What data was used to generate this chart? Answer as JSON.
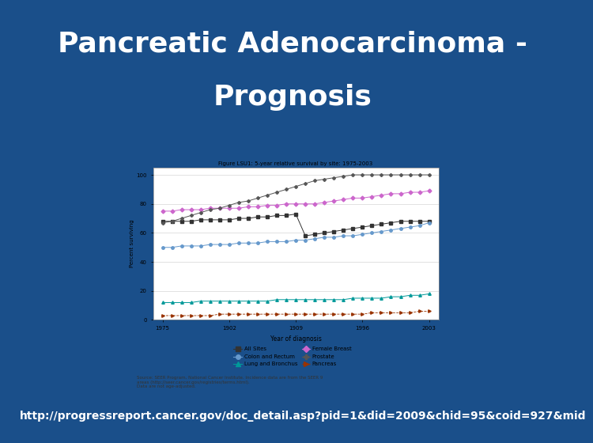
{
  "title_line1": "Pancreatic Adenocarcinoma -",
  "title_line2": "Prognosis",
  "title_fontsize": 26,
  "title_color": "#FFFFFF",
  "background_color": "#1a4f8a",
  "url_text": "http://progressreport.cancer.gov/doc_detail.asp?pid=1&did=2009&chid=95&coid=927&mid",
  "url_fontsize": 10,
  "url_color": "#FFFFFF",
  "chart_title": "Figure LSU1: 5-year relative survival by site: 1975-2003",
  "chart_xlabel": "Year of diagnosis",
  "chart_ylabel": "Percent surviving",
  "chart_bg": "#FFFFFF",
  "source_text": "Source: SEER Program, National Cancer Institute. Incidence data are from the SEER 9\nareas (http://seer.cancer.gov/registries/terms.html).\nData are not age-adjusted.",
  "years": [
    1975,
    1976,
    1977,
    1978,
    1979,
    1980,
    1981,
    1982,
    1983,
    1984,
    1985,
    1986,
    1987,
    1988,
    1989,
    1990,
    1991,
    1992,
    1993,
    1994,
    1995,
    1996,
    1997,
    1998,
    1999,
    2000,
    2001,
    2002,
    2003
  ],
  "all_sites": [
    68,
    68,
    68,
    68,
    69,
    69,
    69,
    69,
    70,
    70,
    71,
    71,
    72,
    72,
    73,
    58,
    59,
    60,
    61,
    62,
    63,
    64,
    65,
    66,
    67,
    68,
    68,
    68,
    68
  ],
  "lung_bronchus": [
    12,
    12,
    12,
    12,
    13,
    13,
    13,
    13,
    13,
    13,
    13,
    13,
    14,
    14,
    14,
    14,
    14,
    14,
    14,
    14,
    15,
    15,
    15,
    15,
    16,
    16,
    17,
    17,
    18
  ],
  "prostate": [
    67,
    68,
    70,
    72,
    74,
    76,
    77,
    79,
    81,
    82,
    84,
    86,
    88,
    90,
    92,
    94,
    96,
    97,
    98,
    99,
    100,
    100,
    100,
    100,
    100,
    100,
    100,
    100,
    100
  ],
  "colon_rectum": [
    50,
    50,
    51,
    51,
    51,
    52,
    52,
    52,
    53,
    53,
    53,
    54,
    54,
    54,
    55,
    55,
    56,
    57,
    57,
    58,
    58,
    59,
    60,
    61,
    62,
    63,
    64,
    65,
    67
  ],
  "female_breast": [
    75,
    75,
    76,
    76,
    76,
    77,
    77,
    77,
    77,
    78,
    78,
    79,
    79,
    80,
    80,
    80,
    80,
    81,
    82,
    83,
    84,
    84,
    85,
    86,
    87,
    87,
    88,
    88,
    89
  ],
  "pancreas": [
    3,
    3,
    3,
    3,
    3,
    3,
    4,
    4,
    4,
    4,
    4,
    4,
    4,
    4,
    4,
    4,
    4,
    4,
    4,
    4,
    4,
    4,
    5,
    5,
    5,
    5,
    5,
    6,
    6
  ],
  "series_all_sites_color": "#333333",
  "series_lung_color": "#009999",
  "series_prostate_color": "#333333",
  "series_colon_color": "#6699CC",
  "series_breast_color": "#CC66CC",
  "series_pancreas_color": "#993300",
  "outer_box_color": "#CCCCCC",
  "inner_source_bg": "#EEEEEE"
}
